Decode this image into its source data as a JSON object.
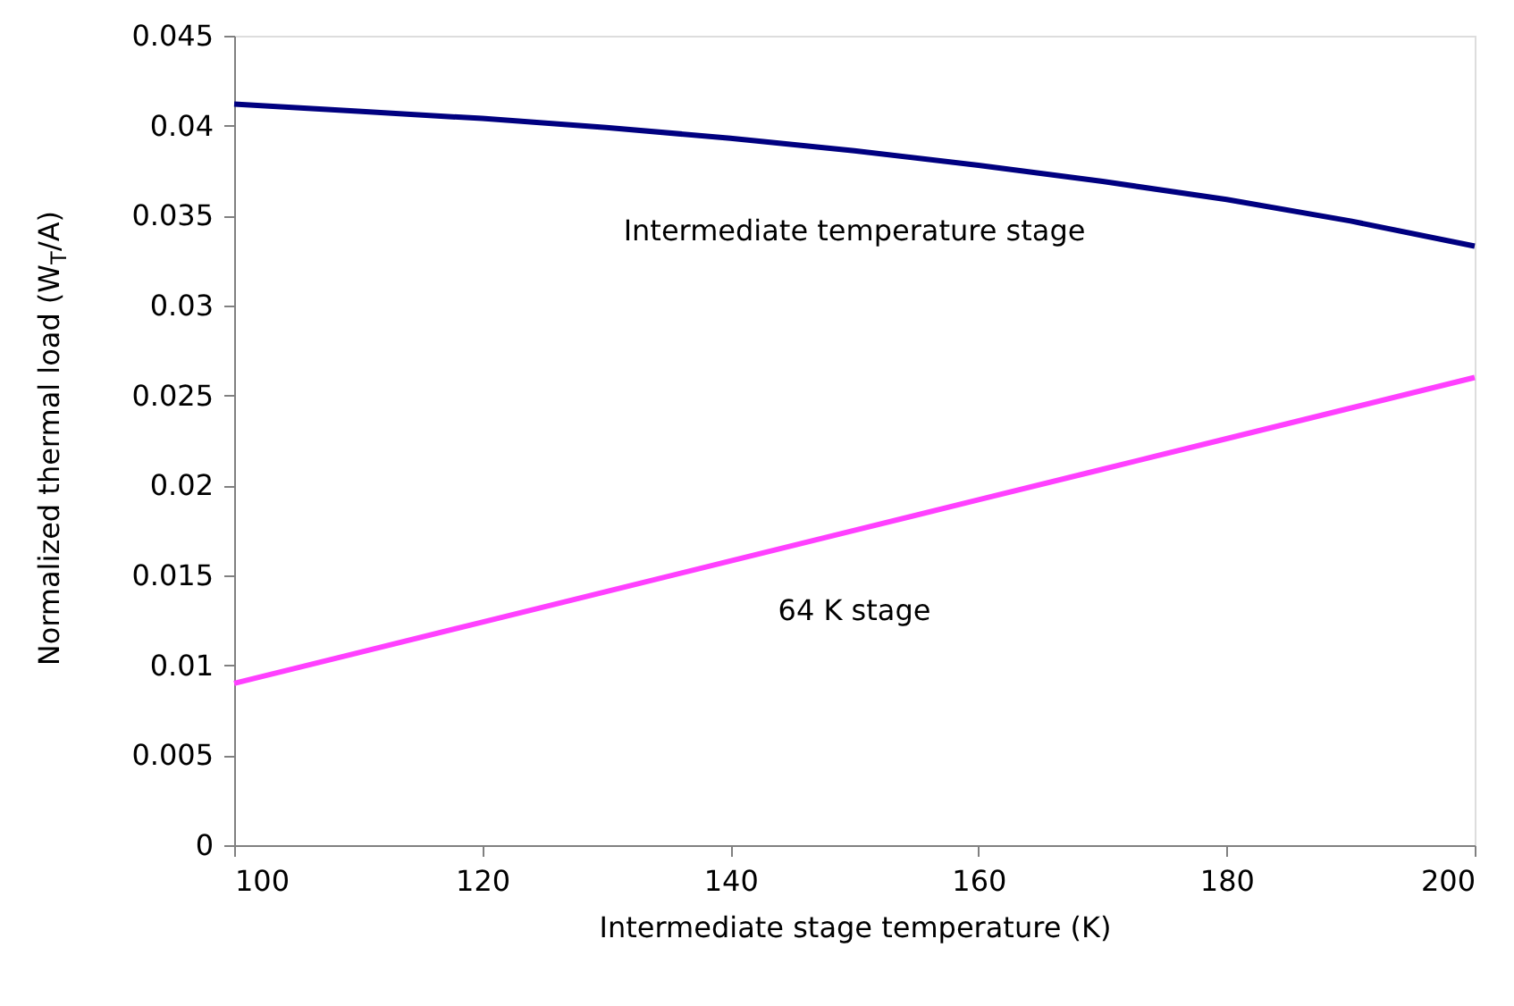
{
  "chart_data": {
    "type": "line",
    "xlabel": "Intermediate stage temperature (K)",
    "ylabel": "Normalized thermal load (W$_{T}$/A)",
    "x": [
      100,
      110,
      120,
      130,
      140,
      150,
      160,
      170,
      180,
      190,
      200
    ],
    "series": [
      {
        "name": "Intermediate temperature stage",
        "color": "#000080",
        "values": [
          0.0412,
          0.0408,
          0.0404,
          0.0399,
          0.0393,
          0.0386,
          0.0378,
          0.0369,
          0.0359,
          0.0347,
          0.0333
        ]
      },
      {
        "name": "64 K stage",
        "color": "#ff40ff",
        "values": [
          0.009,
          0.0107,
          0.0124,
          0.0141,
          0.0158,
          0.0175,
          0.0192,
          0.0209,
          0.0226,
          0.0243,
          0.026
        ]
      }
    ],
    "xlim": [
      100,
      200
    ],
    "xticks": [
      100,
      120,
      140,
      160,
      180,
      200
    ],
    "ylim": [
      0,
      0.045
    ],
    "yticks": [
      0,
      0.005,
      0.01,
      0.015,
      0.02,
      0.025,
      0.03,
      0.035,
      0.04,
      0.045
    ],
    "grid": false,
    "marker": "none",
    "line_style": "solid"
  }
}
